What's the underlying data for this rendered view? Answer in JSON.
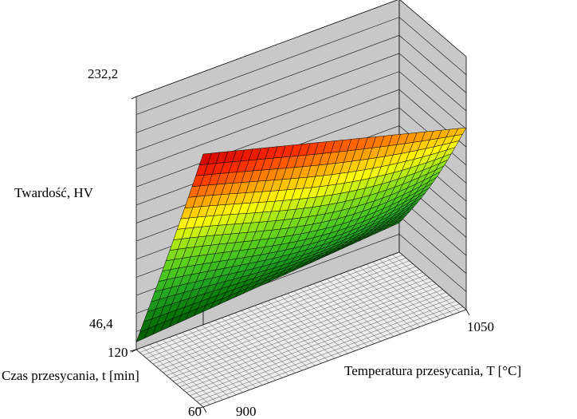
{
  "chart_data": {
    "type": "surface3d",
    "title": "",
    "zlabel": "Twardość, HV",
    "xlabel": "Temperatura przesycania, T [°C]",
    "ylabel": "Czas przesycania, t [min]",
    "x_ticks": [
      "900",
      "1050"
    ],
    "y_ticks": [
      "60",
      "120"
    ],
    "z_ticks": [
      "46,4",
      "232,2"
    ],
    "xlim": [
      900,
      1050
    ],
    "ylim": [
      60,
      120
    ],
    "zlim": [
      46.4,
      232.2
    ],
    "surface_corners": {
      "T900_t60": 232.2,
      "T1050_t60": 180,
      "T900_t120": 52,
      "T1050_t120": 68
    },
    "surface_minimum": 46.4,
    "colormap": [
      "#004e00",
      "#0a7a0a",
      "#22a522",
      "#4cc81e",
      "#8ce01a",
      "#ffff00",
      "#ff9900",
      "#ff2a00",
      "#cc0000"
    ],
    "grid": true
  }
}
